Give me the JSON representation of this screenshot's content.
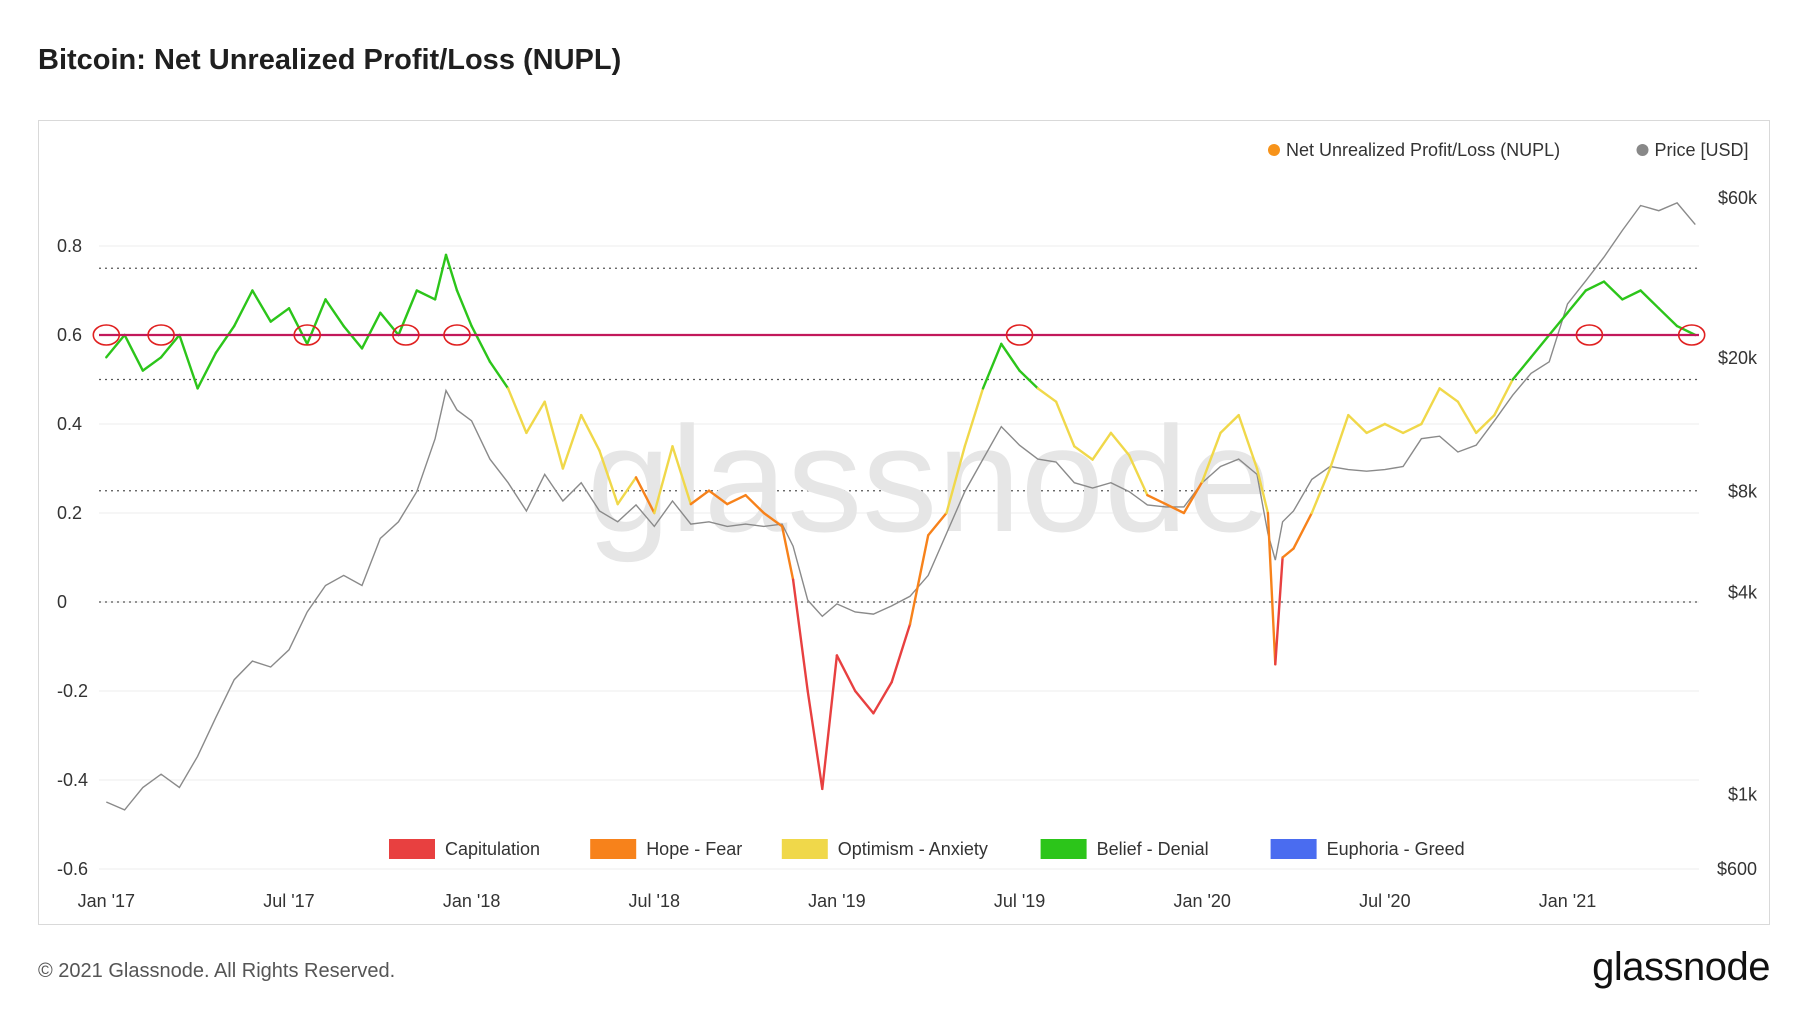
{
  "title": "Bitcoin: Net Unrealized Profit/Loss (NUPL)",
  "footer": {
    "copyright": "© 2021 Glassnode. All Rights Reserved.",
    "logo": "glassnode"
  },
  "watermark": "glassnode",
  "chart_data": {
    "type": "line",
    "title": "Bitcoin: Net Unrealized Profit/Loss (NUPL)",
    "legend_top": [
      {
        "label": "Net Unrealized Profit/Loss (NUPL)",
        "color": "#f7931a"
      },
      {
        "label": "Price [USD]",
        "color": "#888888"
      }
    ],
    "zones": [
      {
        "label": "Capitulation",
        "color": "#e84040",
        "range": [
          -1,
          0
        ]
      },
      {
        "label": "Hope - Fear",
        "color": "#f7821b",
        "range": [
          0,
          0.25
        ]
      },
      {
        "label": "Optimism - Anxiety",
        "color": "#f0d84a",
        "range": [
          0.25,
          0.5
        ]
      },
      {
        "label": "Belief - Denial",
        "color": "#2cc51a",
        "range": [
          0.5,
          0.75
        ]
      },
      {
        "label": "Euphoria - Greed",
        "color": "#4a6cf0",
        "range": [
          0.75,
          1
        ]
      }
    ],
    "x_ticks": [
      "Jan '17",
      "Jul '17",
      "Jan '18",
      "Jul '18",
      "Jan '19",
      "Jul '19",
      "Jan '20",
      "Jul '20",
      "Jan '21"
    ],
    "x_tick_dates": [
      2017.0,
      2017.5,
      2018.0,
      2018.5,
      2019.0,
      2019.5,
      2020.0,
      2020.5,
      2021.0
    ],
    "xlim": [
      2016.98,
      2021.36
    ],
    "y_left": {
      "ticks": [
        "0.8",
        "0.6",
        "0.4",
        "0.2",
        "0",
        "-0.2",
        "-0.4",
        "-0.6"
      ],
      "values": [
        0.8,
        0.6,
        0.4,
        0.2,
        0,
        -0.2,
        -0.4,
        -0.6
      ],
      "ylim": [
        -0.6,
        0.8
      ]
    },
    "y_right": {
      "ticks": [
        "$60k",
        "$20k",
        "$8k",
        "$4k",
        "$1k",
        "$600"
      ],
      "values": [
        60000,
        20000,
        8000,
        4000,
        1000,
        600
      ],
      "scale": "log"
    },
    "hline": {
      "value": 0.6,
      "color": "#c2185b"
    },
    "nupl": {
      "x": [
        2017.0,
        2017.05,
        2017.1,
        2017.15,
        2017.2,
        2017.25,
        2017.3,
        2017.35,
        2017.4,
        2017.45,
        2017.5,
        2017.55,
        2017.6,
        2017.65,
        2017.7,
        2017.75,
        2017.8,
        2017.85,
        2017.9,
        2017.93,
        2017.96,
        2018.0,
        2018.05,
        2018.1,
        2018.15,
        2018.2,
        2018.25,
        2018.3,
        2018.35,
        2018.4,
        2018.45,
        2018.5,
        2018.55,
        2018.6,
        2018.65,
        2018.7,
        2018.75,
        2018.8,
        2018.85,
        2018.88,
        2018.92,
        2018.96,
        2019.0,
        2019.05,
        2019.1,
        2019.15,
        2019.2,
        2019.25,
        2019.3,
        2019.35,
        2019.4,
        2019.45,
        2019.5,
        2019.55,
        2019.6,
        2019.65,
        2019.7,
        2019.75,
        2019.8,
        2019.85,
        2019.9,
        2019.95,
        2020.0,
        2020.05,
        2020.1,
        2020.15,
        2020.18,
        2020.2,
        2020.22,
        2020.25,
        2020.3,
        2020.35,
        2020.4,
        2020.45,
        2020.5,
        2020.55,
        2020.6,
        2020.65,
        2020.7,
        2020.75,
        2020.8,
        2020.85,
        2020.9,
        2020.95,
        2021.0,
        2021.05,
        2021.1,
        2021.15,
        2021.2,
        2021.25,
        2021.3,
        2021.35
      ],
      "y": [
        0.55,
        0.6,
        0.52,
        0.55,
        0.6,
        0.48,
        0.56,
        0.62,
        0.7,
        0.63,
        0.66,
        0.58,
        0.68,
        0.62,
        0.57,
        0.65,
        0.6,
        0.7,
        0.68,
        0.78,
        0.7,
        0.62,
        0.54,
        0.48,
        0.38,
        0.45,
        0.3,
        0.42,
        0.34,
        0.22,
        0.28,
        0.2,
        0.35,
        0.22,
        0.25,
        0.22,
        0.24,
        0.2,
        0.17,
        0.05,
        -0.2,
        -0.42,
        -0.12,
        -0.2,
        -0.25,
        -0.18,
        -0.05,
        0.15,
        0.2,
        0.35,
        0.48,
        0.58,
        0.52,
        0.48,
        0.45,
        0.35,
        0.32,
        0.38,
        0.33,
        0.24,
        0.22,
        0.2,
        0.27,
        0.38,
        0.42,
        0.3,
        0.2,
        -0.14,
        0.1,
        0.12,
        0.2,
        0.3,
        0.42,
        0.38,
        0.4,
        0.38,
        0.4,
        0.48,
        0.45,
        0.38,
        0.42,
        0.5,
        0.55,
        0.6,
        0.65,
        0.7,
        0.72,
        0.68,
        0.7,
        0.66,
        0.62,
        0.6
      ]
    },
    "price": {
      "x": [
        2017.0,
        2017.05,
        2017.1,
        2017.15,
        2017.2,
        2017.25,
        2017.3,
        2017.35,
        2017.4,
        2017.45,
        2017.5,
        2017.55,
        2017.6,
        2017.65,
        2017.7,
        2017.75,
        2017.8,
        2017.85,
        2017.9,
        2017.93,
        2017.96,
        2018.0,
        2018.05,
        2018.1,
        2018.15,
        2018.2,
        2018.25,
        2018.3,
        2018.35,
        2018.4,
        2018.45,
        2018.5,
        2018.55,
        2018.6,
        2018.65,
        2018.7,
        2018.75,
        2018.8,
        2018.85,
        2018.88,
        2018.92,
        2018.96,
        2019.0,
        2019.05,
        2019.1,
        2019.15,
        2019.2,
        2019.25,
        2019.3,
        2019.35,
        2019.4,
        2019.45,
        2019.5,
        2019.55,
        2019.6,
        2019.65,
        2019.7,
        2019.75,
        2019.8,
        2019.85,
        2019.9,
        2019.95,
        2020.0,
        2020.05,
        2020.1,
        2020.15,
        2020.18,
        2020.2,
        2020.22,
        2020.25,
        2020.3,
        2020.35,
        2020.4,
        2020.45,
        2020.5,
        2020.55,
        2020.6,
        2020.65,
        2020.7,
        2020.75,
        2020.8,
        2020.85,
        2020.9,
        2020.95,
        2021.0,
        2021.05,
        2021.1,
        2021.15,
        2021.2,
        2021.25,
        2021.3,
        2021.35
      ],
      "y": [
        950,
        900,
        1050,
        1150,
        1050,
        1300,
        1700,
        2200,
        2500,
        2400,
        2700,
        3500,
        4200,
        4500,
        4200,
        5800,
        6500,
        8000,
        11500,
        16000,
        14000,
        13000,
        10000,
        8500,
        7000,
        9000,
        7500,
        8500,
        7000,
        6500,
        7300,
        6300,
        7500,
        6400,
        6500,
        6300,
        6400,
        6300,
        6400,
        5500,
        3800,
        3400,
        3700,
        3500,
        3450,
        3650,
        3900,
        4500,
        6000,
        8000,
        10000,
        12500,
        11000,
        10000,
        9800,
        8500,
        8200,
        8500,
        8000,
        7300,
        7200,
        7200,
        8500,
        9500,
        10000,
        9000,
        6000,
        5000,
        6500,
        7000,
        8700,
        9500,
        9300,
        9200,
        9300,
        9500,
        11500,
        11700,
        10500,
        11000,
        13000,
        15500,
        18000,
        19500,
        29000,
        34000,
        40000,
        48000,
        57000,
        55000,
        58000,
        50000
      ]
    }
  }
}
